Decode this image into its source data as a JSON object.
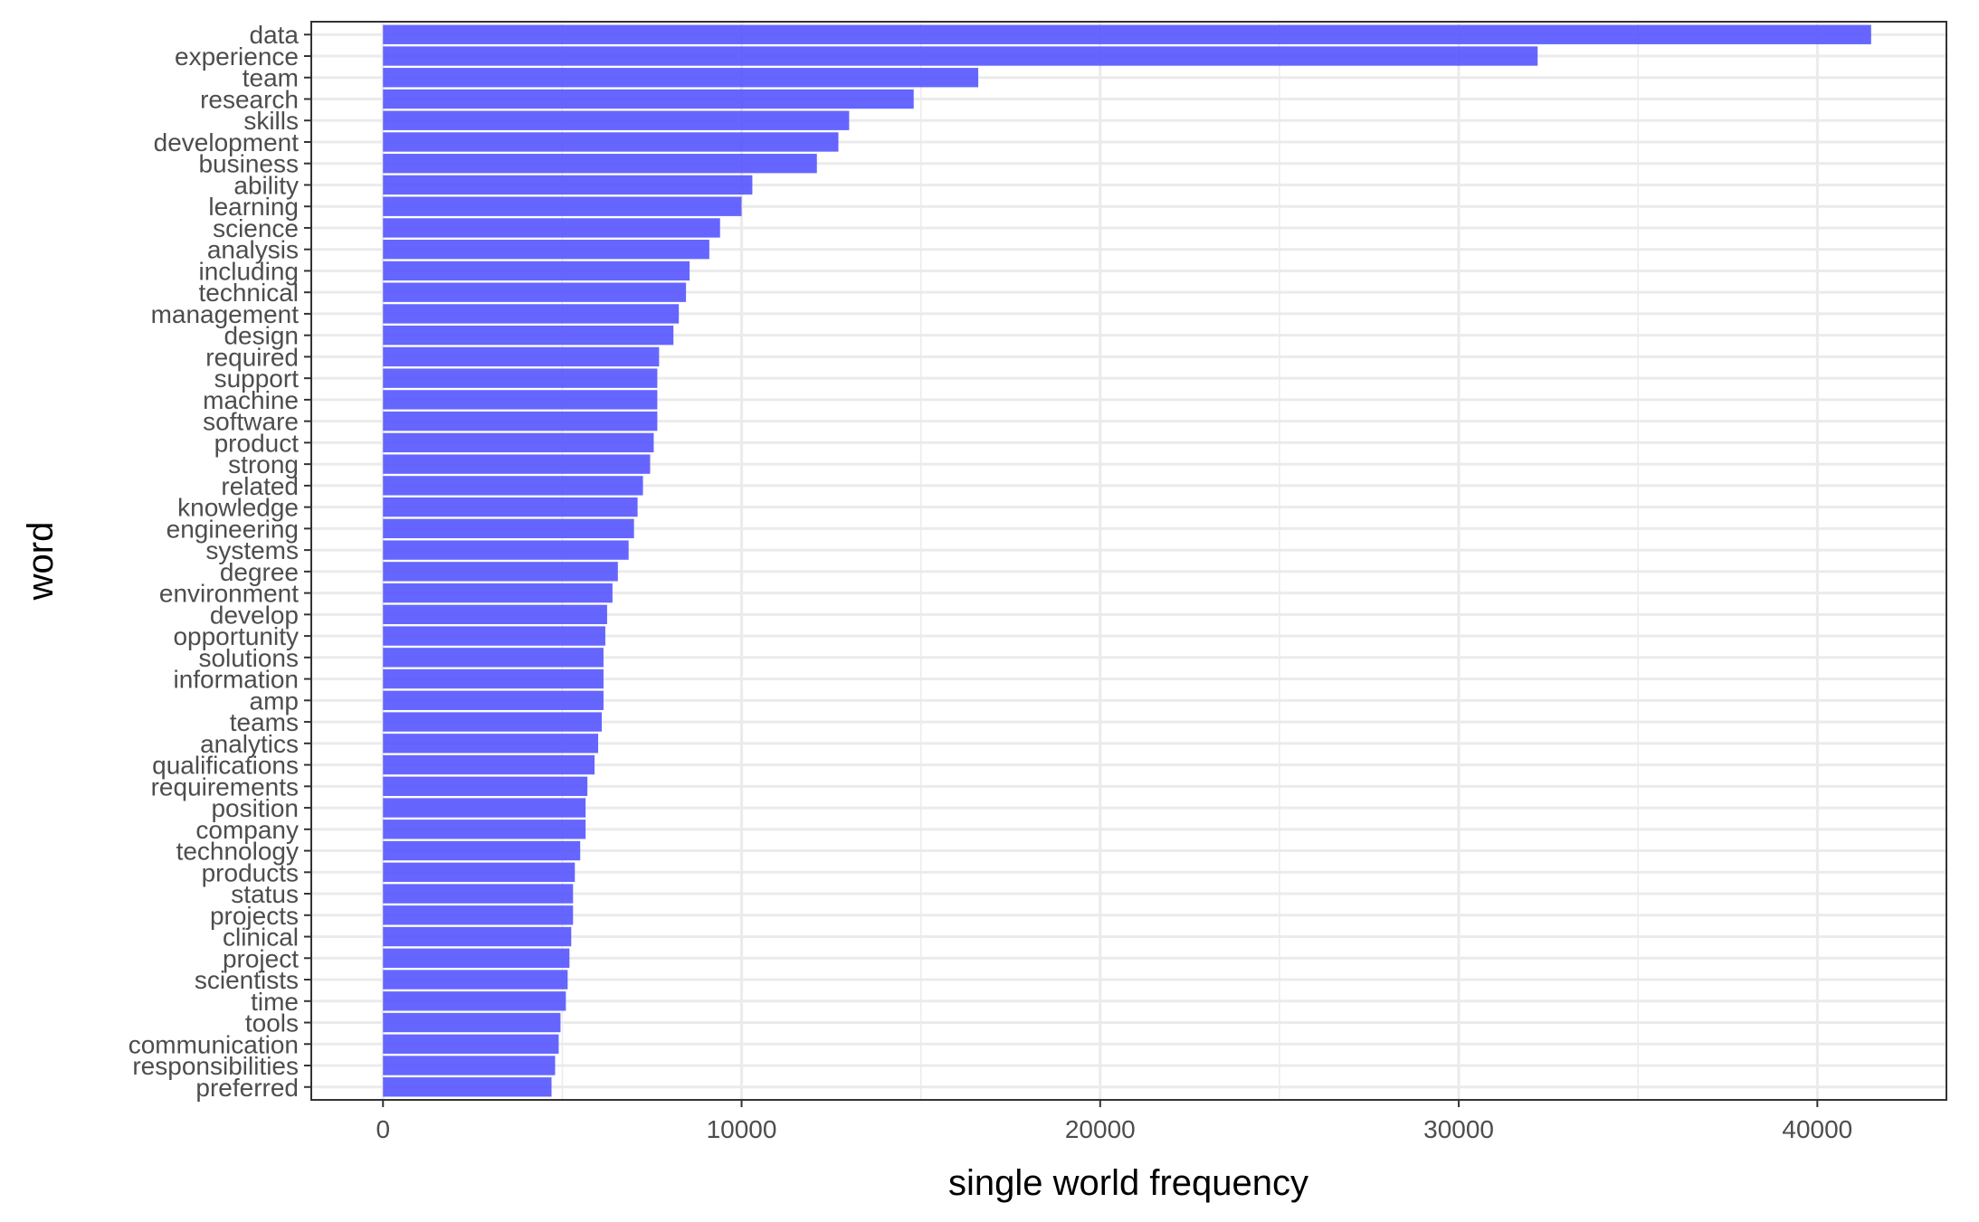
{
  "chart_data": {
    "type": "bar",
    "orientation": "horizontal",
    "xlabel": "single world frequency",
    "ylabel": "word",
    "xlim": [
      -2000,
      43600
    ],
    "xticks": [
      0,
      10000,
      20000,
      30000,
      40000
    ],
    "grid": true,
    "bar_color": "#5555ff",
    "categories": [
      "data",
      "experience",
      "team",
      "research",
      "skills",
      "development",
      "business",
      "ability",
      "learning",
      "science",
      "analysis",
      "including",
      "technical",
      "management",
      "design",
      "required",
      "support",
      "machine",
      "software",
      "product",
      "strong",
      "related",
      "knowledge",
      "engineering",
      "systems",
      "degree",
      "environment",
      "develop",
      "opportunity",
      "solutions",
      "information",
      "amp",
      "teams",
      "analytics",
      "qualifications",
      "requirements",
      "position",
      "company",
      "technology",
      "products",
      "status",
      "projects",
      "clinical",
      "project",
      "scientists",
      "time",
      "tools",
      "communication",
      "responsibilities",
      "preferred"
    ],
    "values": [
      41500,
      32200,
      16600,
      14800,
      13000,
      12700,
      12100,
      10300,
      10000,
      9400,
      9100,
      8550,
      8450,
      8250,
      8100,
      7700,
      7650,
      7650,
      7650,
      7550,
      7450,
      7250,
      7100,
      7000,
      6850,
      6550,
      6400,
      6250,
      6200,
      6150,
      6150,
      6150,
      6100,
      6000,
      5900,
      5700,
      5650,
      5650,
      5500,
      5350,
      5300,
      5300,
      5250,
      5200,
      5150,
      5100,
      4950,
      4900,
      4800,
      4700
    ]
  }
}
